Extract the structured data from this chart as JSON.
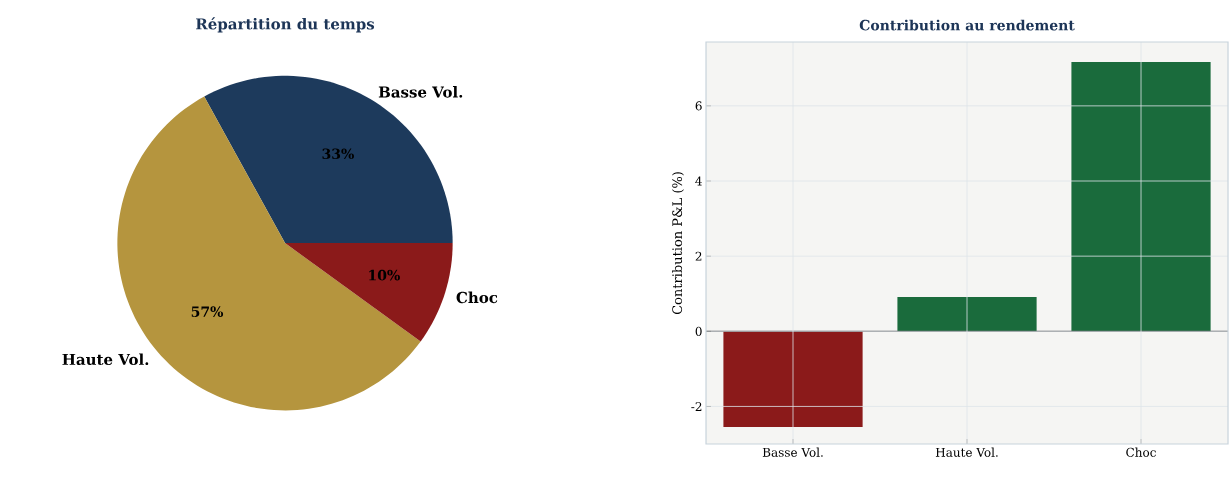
{
  "chart_data": [
    {
      "type": "pie",
      "title": "Répartition du temps",
      "categories": [
        "Basse Vol.",
        "Haute Vol.",
        "Choc"
      ],
      "values": [
        33,
        57,
        10
      ],
      "colors": [
        "#1d3a5c",
        "#b5953e",
        "#8b1a1a"
      ],
      "value_labels": [
        "33%",
        "57%",
        "10%"
      ]
    },
    {
      "type": "bar",
      "title": "Contribution au rendement",
      "ylabel": "Contribution P&L (%)",
      "categories": [
        "Basse Vol.",
        "Haute Vol.",
        "Choc"
      ],
      "values": [
        -2.55,
        0.91,
        7.17
      ],
      "colors": [
        "#8b1a1a",
        "#1a6b3c",
        "#1a6b3c"
      ],
      "ylim": [
        -3.0,
        7.7
      ],
      "yticks": [
        -2,
        0,
        2,
        4,
        6
      ],
      "grid": true,
      "ref_lines": [
        {
          "axis": "y",
          "value": 0,
          "color": "#000000"
        }
      ]
    }
  ]
}
